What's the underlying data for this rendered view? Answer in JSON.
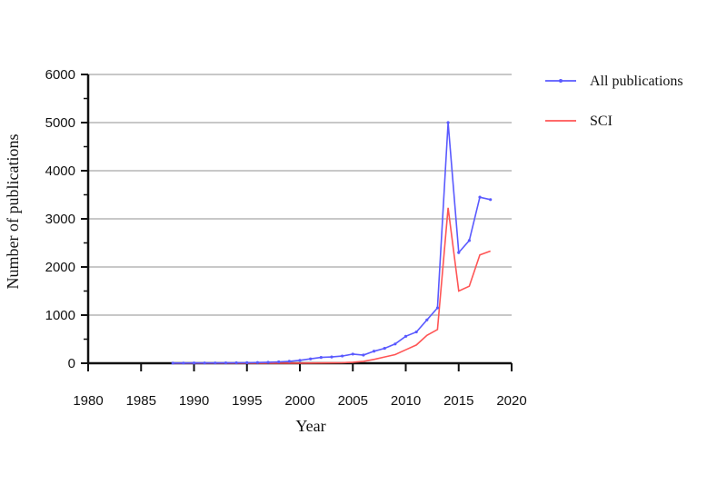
{
  "chart_data": {
    "type": "line",
    "title": "",
    "xlabel": "Year",
    "ylabel": "Number of publications",
    "xlim": [
      1980,
      2020
    ],
    "ylim": [
      0,
      6000
    ],
    "x_ticks": [
      "1980",
      "1985",
      "1990",
      "1995",
      "2000",
      "2005",
      "2010",
      "2015",
      "2020"
    ],
    "y_ticks": [
      "0",
      "1000",
      "2000",
      "3000",
      "4000",
      "5000",
      "6000"
    ],
    "grid": true,
    "legend_position": "right",
    "series": [
      {
        "name": "All publications",
        "color": "#5a5aff",
        "marker": true,
        "x": [
          1988,
          1989,
          1990,
          1991,
          1992,
          1993,
          1994,
          1995,
          1996,
          1997,
          1998,
          1999,
          2000,
          2001,
          2002,
          2003,
          2004,
          2005,
          2006,
          2007,
          2008,
          2009,
          2010,
          2011,
          2012,
          2013,
          2014,
          2015,
          2016,
          2017,
          2018
        ],
        "values": [
          3,
          4,
          5,
          5,
          6,
          8,
          10,
          12,
          15,
          20,
          28,
          40,
          60,
          90,
          120,
          130,
          150,
          190,
          170,
          250,
          310,
          400,
          560,
          650,
          900,
          1150,
          5000,
          2300,
          2550,
          3450,
          3400
        ]
      },
      {
        "name": "SCI",
        "color": "#ff5555",
        "marker": false,
        "x": [
          1988,
          1989,
          1990,
          1991,
          1992,
          1993,
          1994,
          1995,
          1996,
          1997,
          1998,
          1999,
          2000,
          2001,
          2002,
          2003,
          2004,
          2005,
          2006,
          2007,
          2008,
          2009,
          2010,
          2011,
          2012,
          2013,
          2014,
          2015,
          2016,
          2017,
          2018
        ],
        "values": [
          0,
          0,
          0,
          0,
          0,
          0,
          0,
          0,
          0,
          0,
          0,
          1,
          2,
          3,
          5,
          8,
          12,
          20,
          40,
          80,
          130,
          180,
          280,
          380,
          580,
          700,
          3230,
          1500,
          1600,
          2250,
          2330
        ]
      }
    ]
  }
}
